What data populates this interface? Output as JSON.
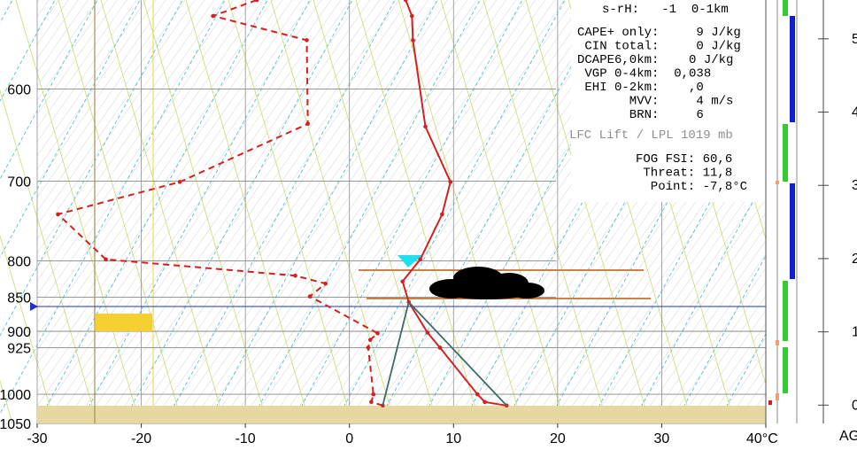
{
  "chart_data": {
    "type": "skewt",
    "xlim": [
      -30,
      40
    ],
    "xticks": [
      -30,
      -20,
      -10,
      0,
      10,
      20,
      30,
      {
        "value": 40,
        "label": "40°C"
      }
    ],
    "ylim": [
      517,
      1050
    ],
    "yticks": [
      600,
      700,
      800,
      850,
      900,
      925,
      1000,
      1050
    ],
    "log_y": true,
    "y2lim": [
      -0.25,
      5.53
    ],
    "y2ticks": [
      0,
      1,
      2,
      3,
      4,
      5
    ],
    "y2_label": "AG",
    "series": [
      {
        "color": "#d42020",
        "dash": false,
        "temperature": [
          15.1,
          13.0,
          12.3,
          8.7,
          7.5,
          5.7,
          5.1,
          6.8,
          8.9,
          9.7,
          7.3,
          6.1,
          6.0,
          5.4
        ],
        "pressure": [
          1019,
          1013,
          1000,
          925,
          902,
          857,
          828,
          798,
          740,
          701,
          639,
          553,
          531,
          517
        ]
      },
      {
        "color": "#d42020",
        "dash": true,
        "temperature": [
          3.2,
          2.1,
          2.3,
          1.8,
          2.0,
          2.7,
          -3.8,
          -2.3,
          -5.2,
          -23.4,
          -28.0,
          -16.3,
          -4.0,
          -4.1,
          -13.1,
          -8.9
        ],
        "pressure": [
          1019,
          1013,
          1000,
          925,
          913,
          903,
          849,
          831,
          820,
          798,
          740,
          701,
          636,
          553,
          531,
          517
        ]
      },
      {
        "color": "#3d6b6b",
        "dash": false,
        "temperature": [
          15.1,
          5.7
        ],
        "pressure": [
          1019,
          857
        ]
      },
      {
        "color": "#3d6b6b",
        "dash": false,
        "temperature": [
          3.2,
          5.7
        ],
        "pressure": [
          1019,
          857
        ]
      }
    ],
    "annotations": {
      "srh": "s-rH:   -1  0-1km",
      "indices": [
        "CAPE+ only:     9 J/kg",
        " CIN total:     0 J/kg",
        "DCAPE6,0km:    0 J/kg",
        " VGP 0-4km:  0,038",
        " EHI 0-2km:    ,0",
        "       MVV:     4 m/s",
        "       BRN:     6"
      ],
      "lfc": "LFC Lift / LPL 1019 mb",
      "fog": [
        "FOG FSI: 60,6",
        " Threat: 11,8",
        "  Point: -7,8°C"
      ]
    }
  }
}
